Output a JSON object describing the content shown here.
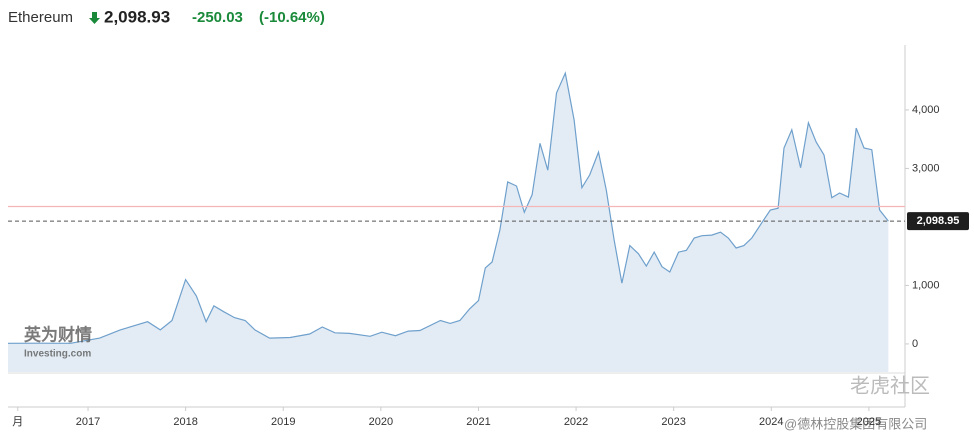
{
  "header": {
    "name": "Ethereum",
    "price": "2,098.93",
    "change": "-250.03",
    "change_pct": "(-10.64%)"
  },
  "chart_data": {
    "type": "area",
    "color": "#6fa0cc",
    "fill": "#e3ecf5",
    "x": [
      2016.18,
      2016.51,
      2016.82,
      2017.12,
      2017.33,
      2017.61,
      2017.74,
      2017.86,
      2018.0,
      2018.11,
      2018.21,
      2018.29,
      2018.39,
      2018.5,
      2018.61,
      2018.71,
      2018.86,
      2019.07,
      2019.27,
      2019.4,
      2019.53,
      2019.68,
      2019.89,
      2020.01,
      2020.15,
      2020.28,
      2020.4,
      2020.61,
      2020.71,
      2020.81,
      2020.91,
      2021.0,
      2021.07,
      2021.14,
      2021.22,
      2021.3,
      2021.39,
      2021.47,
      2021.55,
      2021.63,
      2021.71,
      2021.8,
      2021.89,
      2021.98,
      2022.06,
      2022.14,
      2022.23,
      2022.31,
      2022.39,
      2022.47,
      2022.55,
      2022.64,
      2022.72,
      2022.8,
      2022.88,
      2022.96,
      2023.05,
      2023.13,
      2023.21,
      2023.29,
      2023.39,
      2023.48,
      2023.56,
      2023.64,
      2023.72,
      2023.8,
      2023.91,
      2023.99,
      2024.07,
      2024.13,
      2024.21,
      2024.3,
      2024.38,
      2024.46,
      2024.54,
      2024.62,
      2024.7,
      2024.79,
      2024.87,
      2024.95,
      2025.03,
      2025.11,
      2025.2
    ],
    "values": [
      10,
      12,
      10,
      100,
      240,
      380,
      240,
      400,
      1100,
      820,
      380,
      650,
      550,
      450,
      400,
      240,
      100,
      110,
      170,
      290,
      190,
      180,
      130,
      200,
      140,
      220,
      230,
      400,
      350,
      400,
      600,
      740,
      1300,
      1400,
      1950,
      2770,
      2700,
      2250,
      2550,
      3430,
      2970,
      4290,
      4630,
      3830,
      2670,
      2890,
      3280,
      2630,
      1780,
      1040,
      1680,
      1540,
      1330,
      1570,
      1320,
      1230,
      1570,
      1600,
      1810,
      1850,
      1860,
      1910,
      1810,
      1640,
      1680,
      1810,
      2090,
      2290,
      2320,
      3350,
      3660,
      3010,
      3780,
      3450,
      3230,
      2500,
      2580,
      2510,
      3690,
      3350,
      3320,
      2290,
      2100
    ],
    "xlim": [
      2016.18,
      2025.37
    ],
    "xticks": [
      {
        "value": 2016.28,
        "label": "月"
      },
      2017,
      2018,
      2019,
      2020,
      2021,
      2022,
      2023,
      2024,
      2025
    ],
    "ylim": [
      -480,
      5110
    ],
    "yticks": [
      0,
      {
        "value": 1000,
        "label": "1,000"
      },
      {
        "value": 3000,
        "label": "3,000"
      },
      {
        "value": 4000,
        "label": "4,000"
      }
    ],
    "reference_line": {
      "value": 2349,
      "color": "#f4b6b6"
    },
    "last_price": {
      "value": 2098.95,
      "label": "2,098.95"
    }
  },
  "watermarks": [
    "英为财情",
    "Investing.com",
    "老虎社区",
    "@德林控股集团有限公司"
  ]
}
